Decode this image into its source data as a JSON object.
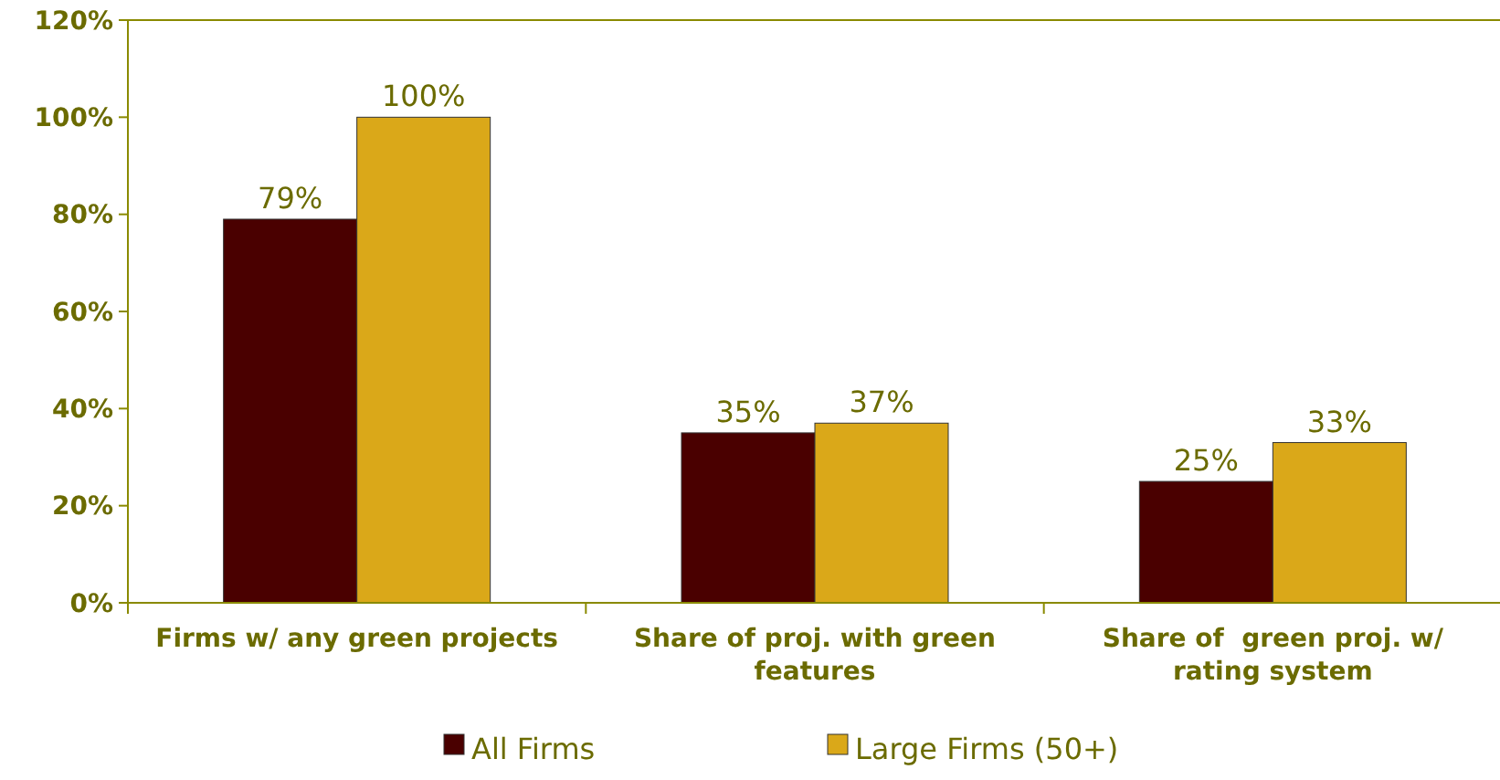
{
  "chart_data": {
    "type": "bar",
    "categories": [
      "Firms w/ any green projects",
      "Share of proj. with green features",
      "Share of  green proj. w/ rating system"
    ],
    "series": [
      {
        "name": "All Firms",
        "color": "#4a0000",
        "values": [
          79,
          35,
          25
        ]
      },
      {
        "name": "Large Firms (50+)",
        "color": "#daa819",
        "values": [
          100,
          37,
          33
        ]
      }
    ],
    "ylim": [
      0,
      120
    ],
    "yticks": [
      {
        "value": 0,
        "label": "0%"
      },
      {
        "value": 20,
        "label": "20%"
      },
      {
        "value": 40,
        "label": "40%"
      },
      {
        "value": 60,
        "label": "60%"
      },
      {
        "value": 80,
        "label": "80%"
      },
      {
        "value": 100,
        "label": "100%"
      },
      {
        "value": 120,
        "label": "120%"
      }
    ],
    "value_labels": [
      [
        "79%",
        "35%",
        "25%"
      ],
      [
        "100%",
        "37%",
        "33%"
      ]
    ],
    "grid": false,
    "legend": "bottom"
  }
}
